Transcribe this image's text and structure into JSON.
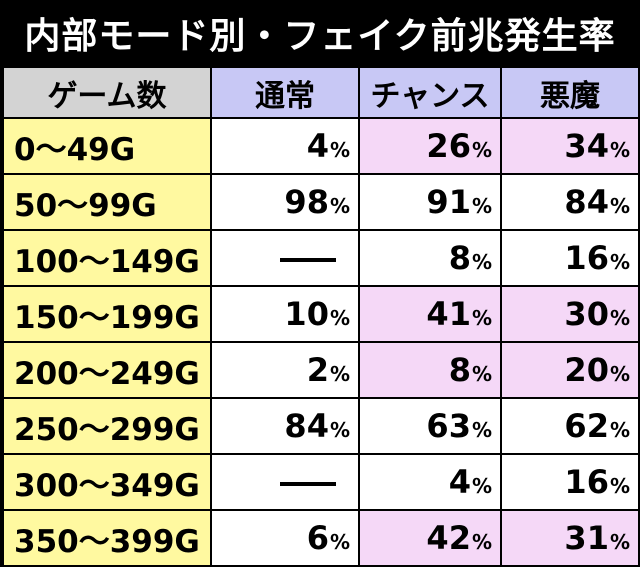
{
  "title": "内部モード別・フェイク前兆発生率",
  "headers": {
    "game": "ゲーム数",
    "normal": "通常",
    "chance": "チャンス",
    "akuma": "悪魔"
  },
  "pct_unit": "%",
  "rows": [
    {
      "game": "0〜49G",
      "normal": "4",
      "chance": "26",
      "akuma": "34",
      "highlight": true
    },
    {
      "game": "50〜99G",
      "normal": "98",
      "chance": "91",
      "akuma": "84",
      "highlight": false
    },
    {
      "game": "100〜149G",
      "normal": "—",
      "chance": "8",
      "akuma": "16",
      "highlight": false
    },
    {
      "game": "150〜199G",
      "normal": "10",
      "chance": "41",
      "akuma": "30",
      "highlight": true
    },
    {
      "game": "200〜249G",
      "normal": "2",
      "chance": "8",
      "akuma": "20",
      "highlight": true
    },
    {
      "game": "250〜299G",
      "normal": "84",
      "chance": "63",
      "akuma": "62",
      "highlight": false
    },
    {
      "game": "300〜349G",
      "normal": "—",
      "chance": "4",
      "akuma": "16",
      "highlight": false
    },
    {
      "game": "350〜399G",
      "normal": "6",
      "chance": "42",
      "akuma": "31",
      "highlight": true
    }
  ],
  "colors": {
    "header_game": "#d3d3d3",
    "header_col": "#c8c8f5",
    "game_cell": "#fff9a0",
    "highlight_cell": "#f5d8f7"
  }
}
